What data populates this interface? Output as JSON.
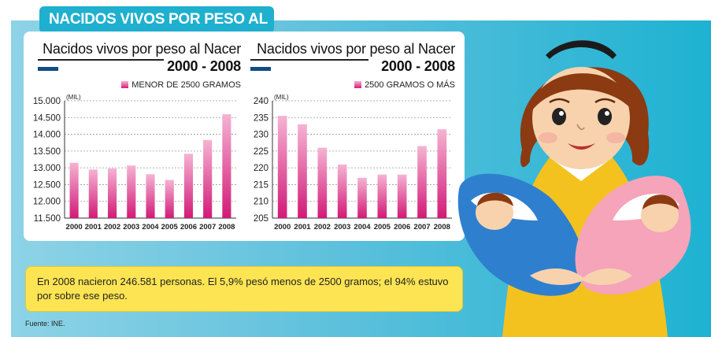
{
  "header": {
    "title": "NACIDOS VIVOS POR PESO AL NACER"
  },
  "chart_data": [
    {
      "type": "bar",
      "title": "Nacidos vivos por peso al Nacer",
      "subtitle": "2000 - 2008",
      "unit": "(MIL)",
      "legend": "MENOR DE 2500 GRAMOS",
      "categories": [
        "2000",
        "2001",
        "2002",
        "2003",
        "2004",
        "2005",
        "2006",
        "2007",
        "2008"
      ],
      "values": [
        13150,
        12950,
        12980,
        13070,
        12810,
        12640,
        13420,
        13830,
        14600
      ],
      "ylim": [
        11500,
        15000
      ],
      "yticks": [
        "11.500",
        "12.000",
        "12.500",
        "13.000",
        "13.500",
        "14.000",
        "14.500",
        "15.000"
      ],
      "grid": true
    },
    {
      "type": "bar",
      "title": "Nacidos vivos por peso al Nacer",
      "subtitle": "2000 - 2008",
      "unit": "(MIL)",
      "legend": "2500 GRAMOS O MÁS",
      "categories": [
        "2000",
        "2001",
        "2002",
        "2003",
        "2004",
        "2005",
        "2006",
        "2007",
        "2008"
      ],
      "values": [
        235.5,
        233.0,
        226.0,
        221.0,
        217.0,
        218.0,
        218.0,
        226.5,
        231.5
      ],
      "ylim": [
        205,
        240
      ],
      "yticks": [
        "205",
        "210",
        "215",
        "220",
        "225",
        "230",
        "235",
        "240"
      ],
      "grid": true
    }
  ],
  "note": "En 2008 nacieron 246.581 personas. El 5,9% pesó menos de 2500 gramos; el 94% estuvo por sobre ese peso.",
  "source": "Fuente: INE.",
  "colors": {
    "bar_top": "#f5b3d3",
    "bar_bottom": "#d21a78",
    "panel": "#1fb0cf",
    "note_bg": "#fde453"
  }
}
